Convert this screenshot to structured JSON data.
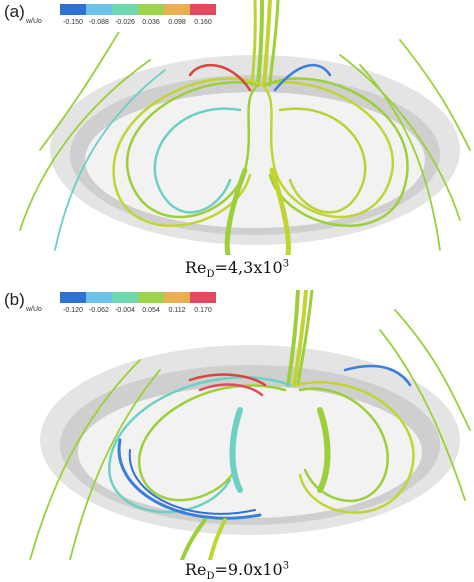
{
  "figure": {
    "panels": [
      {
        "label": "(a)",
        "colorbar_variable": "w/Uo",
        "colorbar_ticks": [
          "-0.150",
          "-0.088",
          "-0.026",
          "0.036",
          "0.098",
          "0.160"
        ],
        "caption_base": "Re",
        "caption_sub": "D",
        "caption_value": "=4,3x10",
        "caption_exp": "3"
      },
      {
        "label": "(b)",
        "colorbar_variable": "w/Uo",
        "colorbar_ticks": [
          "-0.120",
          "-0.062",
          "-0.004",
          "0.054",
          "0.112",
          "0.170"
        ],
        "caption_base": "Re",
        "caption_sub": "D",
        "caption_value": "=9.0x10",
        "caption_exp": "3"
      }
    ],
    "colorbar_colors": [
      "#2f6fd6",
      "#6cc4e8",
      "#72d8b0",
      "#9cd44c",
      "#e8b054",
      "#e04a5c"
    ],
    "streamline_colors": {
      "dominant_green": "#9ccf3a",
      "yellow_green": "#c2d432",
      "cyan": "#6dd0c4",
      "blue": "#3a7fd8",
      "red": "#d8463e",
      "surface_grey": "#c9c9c9"
    }
  }
}
